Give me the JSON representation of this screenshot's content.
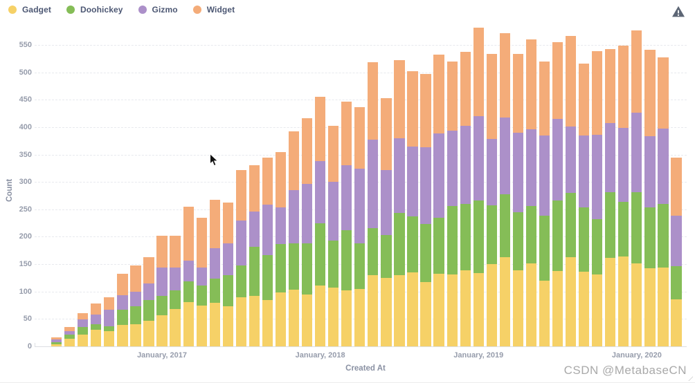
{
  "watermark": "CSDN @MetabaseCN",
  "header": {
    "warning_icon": "alert-triangle"
  },
  "chart_data": {
    "type": "bar",
    "stacked": true,
    "title": "",
    "xlabel": "Created At",
    "ylabel": "Count",
    "ylim": [
      0,
      583
    ],
    "grid": "dashed-horizontal",
    "legend_position": "top-left",
    "y_ticks": [
      0,
      50,
      100,
      150,
      200,
      250,
      300,
      350,
      400,
      450,
      500,
      550
    ],
    "x_tick_labels": [
      {
        "label": "January, 2017",
        "index": 8
      },
      {
        "label": "January, 2018",
        "index": 20
      },
      {
        "label": "January, 2019",
        "index": 32
      },
      {
        "label": "January, 2020",
        "index": 44
      }
    ],
    "categories": [
      "2016-05",
      "2016-06",
      "2016-07",
      "2016-08",
      "2016-09",
      "2016-10",
      "2016-11",
      "2016-12",
      "2017-01",
      "2017-02",
      "2017-03",
      "2017-04",
      "2017-05",
      "2017-06",
      "2017-07",
      "2017-08",
      "2017-09",
      "2017-10",
      "2017-11",
      "2017-12",
      "2018-01",
      "2018-02",
      "2018-03",
      "2018-04",
      "2018-05",
      "2018-06",
      "2018-07",
      "2018-08",
      "2018-09",
      "2018-10",
      "2018-11",
      "2018-12",
      "2019-01",
      "2019-02",
      "2019-03",
      "2019-04",
      "2019-05",
      "2019-06",
      "2019-07",
      "2019-08",
      "2019-09",
      "2019-10",
      "2019-11",
      "2019-12",
      "2020-01",
      "2020-02",
      "2020-03",
      "2020-04"
    ],
    "series": [
      {
        "name": "Gadget",
        "color": "#F6D167",
        "values": [
          4,
          14,
          21,
          30,
          28,
          39,
          40,
          47,
          57,
          68,
          81,
          74,
          79,
          73,
          90,
          92,
          85,
          99,
          104,
          95,
          111,
          107,
          102,
          105,
          130,
          125,
          130,
          135,
          117,
          132,
          131,
          139,
          134,
          150,
          163,
          139,
          151,
          120,
          137,
          163,
          136,
          131,
          162,
          164,
          151,
          142,
          144,
          86
        ]
      },
      {
        "name": "Doohickey",
        "color": "#85BD57",
        "values": [
          4,
          7,
          14,
          10,
          9,
          28,
          33,
          38,
          35,
          34,
          37,
          37,
          45,
          57,
          57,
          90,
          81,
          88,
          84,
          93,
          114,
          86,
          110,
          83,
          86,
          78,
          114,
          102,
          106,
          103,
          125,
          121,
          132,
          107,
          115,
          106,
          105,
          119,
          129,
          117,
          117,
          101,
          119,
          100,
          130,
          112,
          116,
          60
        ]
      },
      {
        "name": "Gizmo",
        "color": "#AC90C9",
        "values": [
          4,
          7,
          14,
          18,
          30,
          26,
          27,
          30,
          52,
          42,
          39,
          33,
          55,
          58,
          82,
          64,
          93,
          66,
          97,
          108,
          113,
          107,
          119,
          136,
          161,
          119,
          136,
          127,
          140,
          154,
          138,
          143,
          154,
          121,
          140,
          145,
          140,
          146,
          149,
          121,
          132,
          154,
          126,
          135,
          145,
          129,
          137,
          92
        ]
      },
      {
        "name": "Widget",
        "color": "#F4AC79",
        "values": [
          5,
          7,
          12,
          20,
          22,
          40,
          47,
          48,
          58,
          58,
          98,
          91,
          88,
          74,
          93,
          85,
          85,
          101,
          107,
          120,
          118,
          102,
          115,
          112,
          141,
          131,
          142,
          138,
          134,
          143,
          126,
          135,
          162,
          155,
          154,
          144,
          164,
          135,
          140,
          165,
          131,
          153,
          135,
          150,
          151,
          158,
          130,
          106
        ]
      }
    ]
  }
}
